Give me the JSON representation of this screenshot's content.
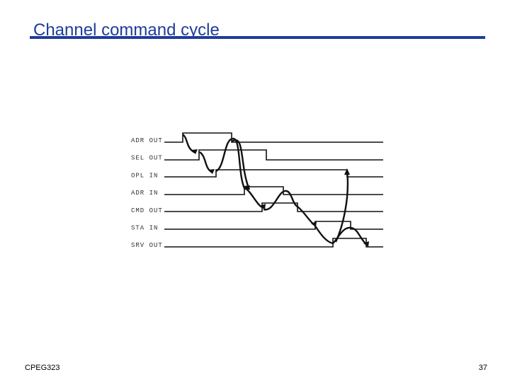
{
  "title": "Channel command cycle",
  "signals": [
    "ADR OUT",
    "SEL OUT",
    "OPL IN",
    "ADR IN",
    "CMD OUT",
    "STA IN",
    "SRV OUT"
  ],
  "footer": {
    "left": "CPEG323",
    "right": "37"
  }
}
